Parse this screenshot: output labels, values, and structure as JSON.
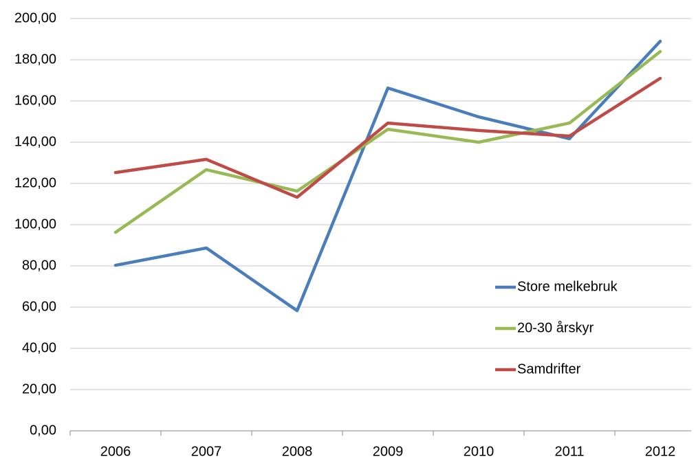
{
  "chart_data": {
    "type": "line",
    "categories": [
      "2006",
      "2007",
      "2008",
      "2009",
      "2010",
      "2011",
      "2012"
    ],
    "series": [
      {
        "name": "Store melkebruk",
        "color": "#4a7ebb",
        "values": [
          80.3,
          88.7,
          58.3,
          166.3,
          152.3,
          141.7,
          189
        ]
      },
      {
        "name": "20-30 årskyr",
        "color": "#98b954",
        "values": [
          96.3,
          126.7,
          116.3,
          146.3,
          140,
          149.3,
          184
        ]
      },
      {
        "name": "Samdrifter",
        "color": "#be4b48",
        "values": [
          125.3,
          131.7,
          113.3,
          149.3,
          145.7,
          143,
          171
        ]
      }
    ],
    "ylim": [
      0,
      200
    ],
    "yticks": [
      {
        "value": 0,
        "label": "0,00"
      },
      {
        "value": 20,
        "label": "20,00"
      },
      {
        "value": 40,
        "label": "40,00"
      },
      {
        "value": 60,
        "label": "60,00"
      },
      {
        "value": 80,
        "label": "80,00"
      },
      {
        "value": 100,
        "label": "100,00"
      },
      {
        "value": 120,
        "label": "120,00"
      },
      {
        "value": 140,
        "label": "140,00"
      },
      {
        "value": 160,
        "label": "160,00"
      },
      {
        "value": 180,
        "label": "180,00"
      },
      {
        "value": 200,
        "label": "200,00"
      }
    ],
    "grid": true,
    "legend": "right"
  }
}
